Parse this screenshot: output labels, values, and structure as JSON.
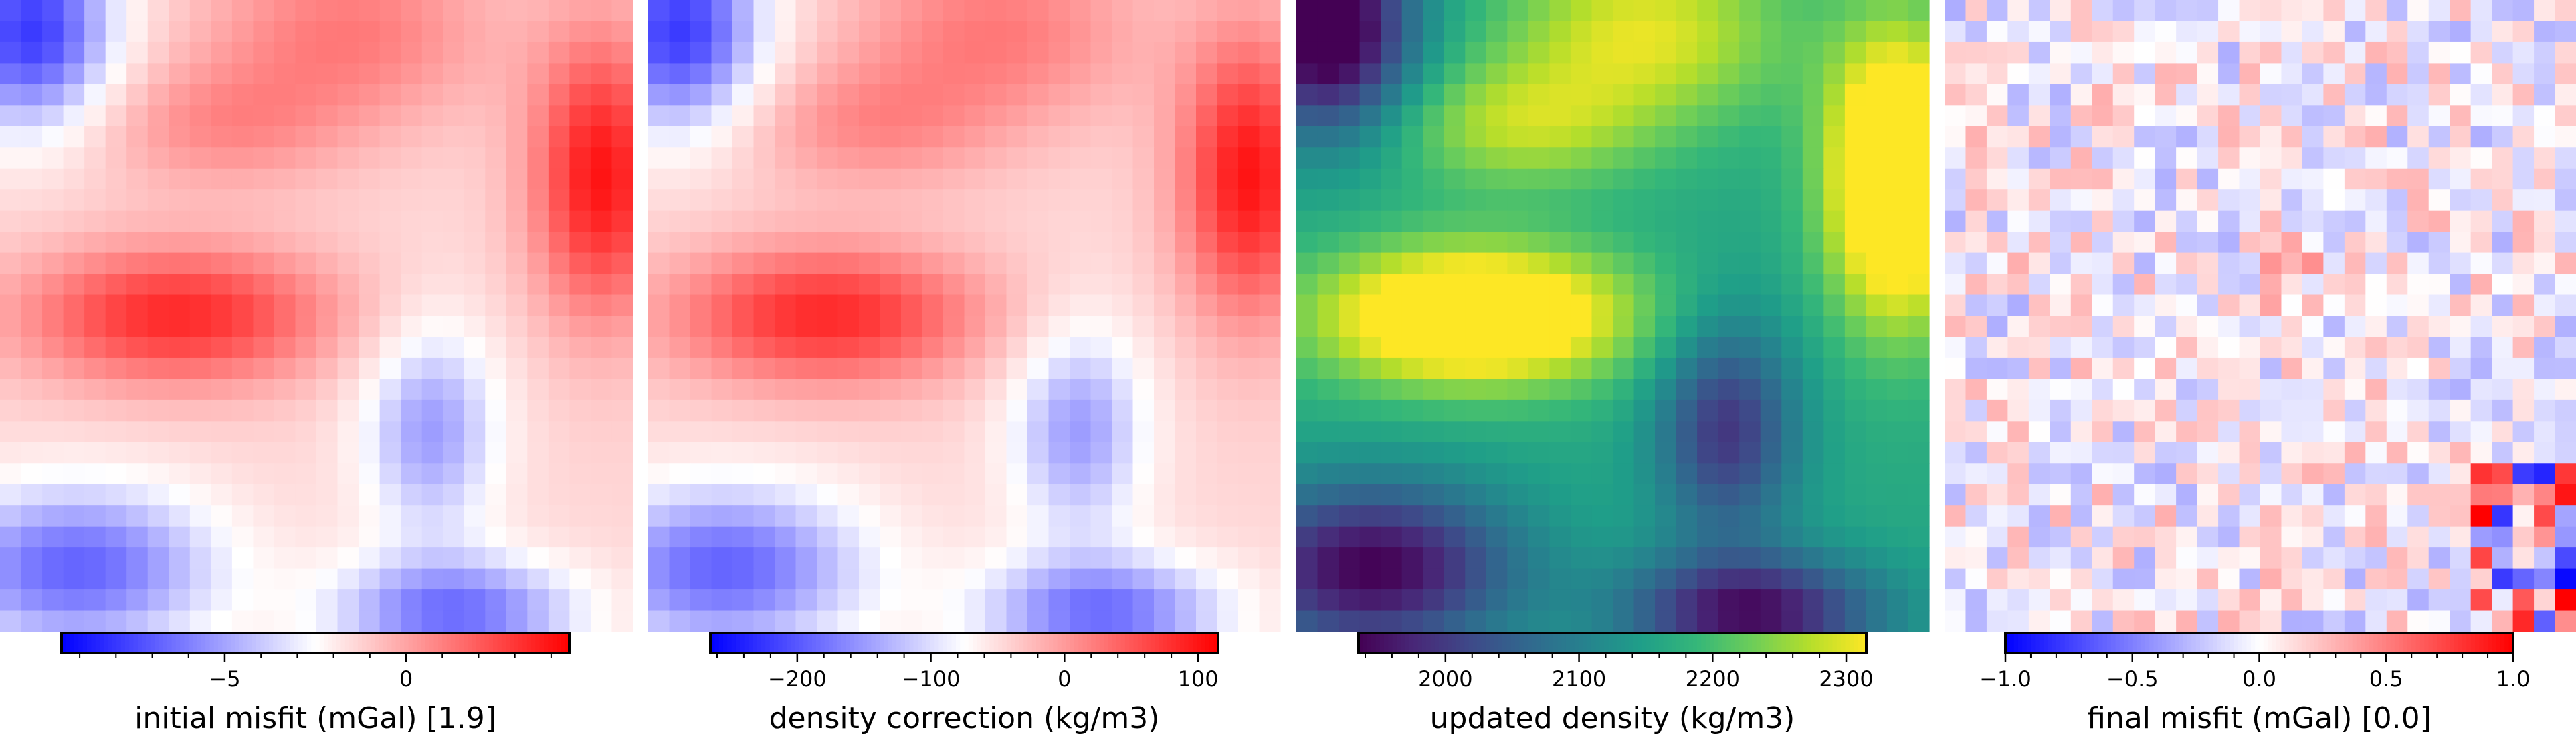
{
  "chart_data": [
    {
      "type": "heatmap",
      "cmap": "bwr",
      "colorbar_label": "initial misfit (mGal) [1.9]",
      "colorbar_range": [
        -9.5,
        4.5
      ],
      "colorbar_ticks": [
        -5,
        0
      ],
      "tick_labels": [
        "−5",
        "0"
      ],
      "grid_rows": 30,
      "grid_cols": 30
    },
    {
      "type": "heatmap",
      "cmap": "bwr",
      "colorbar_label": "density correction (kg/m3)",
      "colorbar_range": [
        -265,
        115
      ],
      "colorbar_ticks": [
        -200,
        -100,
        0,
        100
      ],
      "tick_labels": [
        "−200",
        "−100",
        "0",
        "100"
      ],
      "grid_rows": 30,
      "grid_cols": 30
    },
    {
      "type": "heatmap",
      "cmap": "viridis",
      "colorbar_label": "updated density (kg/m3)",
      "colorbar_range": [
        1935,
        2315
      ],
      "colorbar_ticks": [
        2000,
        2100,
        2200,
        2300
      ],
      "tick_labels": [
        "2000",
        "2100",
        "2200",
        "2300"
      ],
      "grid_rows": 30,
      "grid_cols": 30
    },
    {
      "type": "heatmap",
      "cmap": "bwr",
      "colorbar_label": "final misfit (mGal) [0.0]",
      "colorbar_range": [
        -1.0,
        1.0
      ],
      "colorbar_ticks": [
        -1.0,
        -0.5,
        0.0,
        0.5,
        1.0
      ],
      "tick_labels": [
        "−1.0",
        "−0.5",
        "0.0",
        "0.5",
        "1.0"
      ],
      "grid_rows": 30,
      "grid_cols": 30
    }
  ]
}
